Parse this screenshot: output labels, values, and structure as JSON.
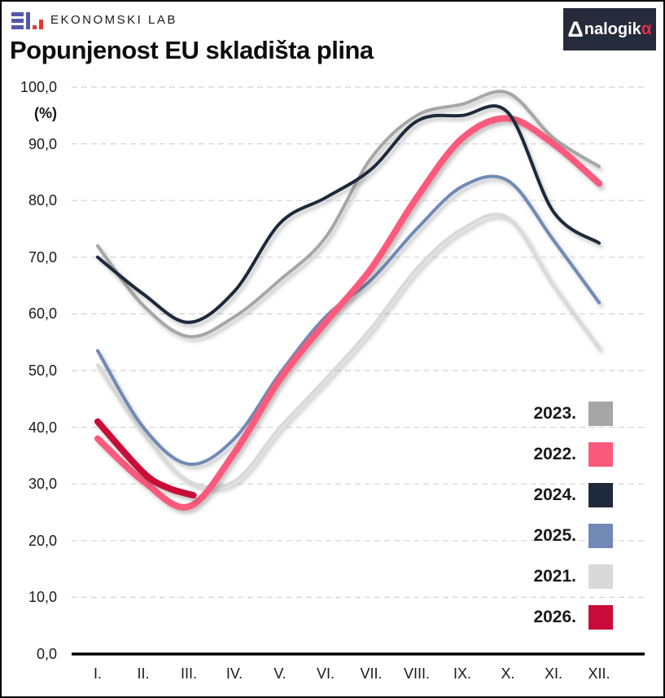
{
  "header": {
    "brand_text": "EKONOMSKI LAB",
    "analogika": {
      "delta": "Δ",
      "name": "nalogik",
      "alpha": "α"
    }
  },
  "title": "Popunjenost EU skladišta plina",
  "colors": {
    "background": "#ffffff",
    "grid": "#d4d4d4",
    "axis": "#000000",
    "text": "#1a1a1a",
    "logo_indigo": "#5558ad",
    "logo_red": "#e8392e",
    "analogika_bg": "#252b3a",
    "analogika_red": "#e62b4c"
  },
  "chart_data": {
    "type": "line",
    "title": "Popunjenost EU skladišta plina",
    "ylabel": "(%)",
    "xlabel": "",
    "ylim": [
      0,
      100
    ],
    "grid": "horizontal-dashed",
    "legend_position": "inside-right-lower",
    "x_unit": "month",
    "x_ticklabels": [
      "I.",
      "II.",
      "III.",
      "IV.",
      "V.",
      "VI.",
      "VII.",
      "VIII.",
      "IX.",
      "X.",
      "XI.",
      "XII."
    ],
    "y_ticks": [
      {
        "value": 100,
        "label": "100,0"
      },
      {
        "value": 90,
        "label": "90,0"
      },
      {
        "value": 80,
        "label": "80,0"
      },
      {
        "value": 70,
        "label": "70,0"
      },
      {
        "value": 60,
        "label": "60,0"
      },
      {
        "value": 50,
        "label": "50,0"
      },
      {
        "value": 40,
        "label": "40,0"
      },
      {
        "value": 30,
        "label": "30,0"
      },
      {
        "value": 20,
        "label": "20,0"
      },
      {
        "value": 10,
        "label": "10,0"
      },
      {
        "value": 0,
        "label": "0,0"
      }
    ],
    "legend_order": [
      "2023.",
      "2022.",
      "2024.",
      "2025.",
      "2021.",
      "2026."
    ],
    "draw_order": [
      "2021.",
      "2023.",
      "2025.",
      "2022.",
      "2024.",
      "2026."
    ],
    "series": [
      {
        "name": "2023.",
        "color": "#a6a6a6",
        "width": 4,
        "x": [
          1,
          2,
          3,
          4,
          5,
          6,
          7,
          8,
          9,
          10,
          11,
          12
        ],
        "values": [
          72,
          61.5,
          56,
          59.5,
          66,
          73.5,
          87.5,
          95,
          97,
          99,
          91,
          86
        ]
      },
      {
        "name": "2022.",
        "color": "#fb5a7c",
        "width": 8,
        "x": [
          1,
          2,
          3,
          4,
          5,
          6,
          7,
          8,
          9,
          10,
          11,
          12
        ],
        "values": [
          38,
          30.5,
          26,
          35.5,
          48.5,
          58.5,
          68,
          80.5,
          91,
          94.5,
          90,
          83
        ]
      },
      {
        "name": "2024.",
        "color": "#1e2a3b",
        "width": 4,
        "x": [
          1,
          2,
          3,
          4,
          5,
          6,
          7,
          8,
          9,
          10,
          11,
          12
        ],
        "values": [
          70,
          63.5,
          58.5,
          64,
          76,
          80.5,
          85.5,
          94,
          95,
          95.5,
          78,
          72.5
        ]
      },
      {
        "name": "2025.",
        "color": "#7189b5",
        "width": 4,
        "x": [
          1,
          2,
          3,
          4,
          5,
          6,
          7,
          8,
          9,
          10,
          11,
          12
        ],
        "values": [
          53.5,
          40,
          33.5,
          38,
          49.5,
          59.5,
          66,
          75,
          82.5,
          83.5,
          73,
          62
        ]
      },
      {
        "name": "2021.",
        "color": "#d9d9d9",
        "width": 4,
        "x": [
          1,
          2,
          3,
          4,
          5,
          6,
          7,
          8,
          9,
          10,
          11,
          12
        ],
        "values": [
          51,
          39,
          30.5,
          30.5,
          40,
          48.5,
          57.5,
          68,
          75,
          77,
          65,
          54
        ]
      },
      {
        "name": "2026.",
        "color": "#c80b39",
        "width": 8,
        "x": [
          1,
          2,
          2.55,
          3.1
        ],
        "values": [
          41,
          32,
          29.3,
          28
        ]
      }
    ]
  }
}
